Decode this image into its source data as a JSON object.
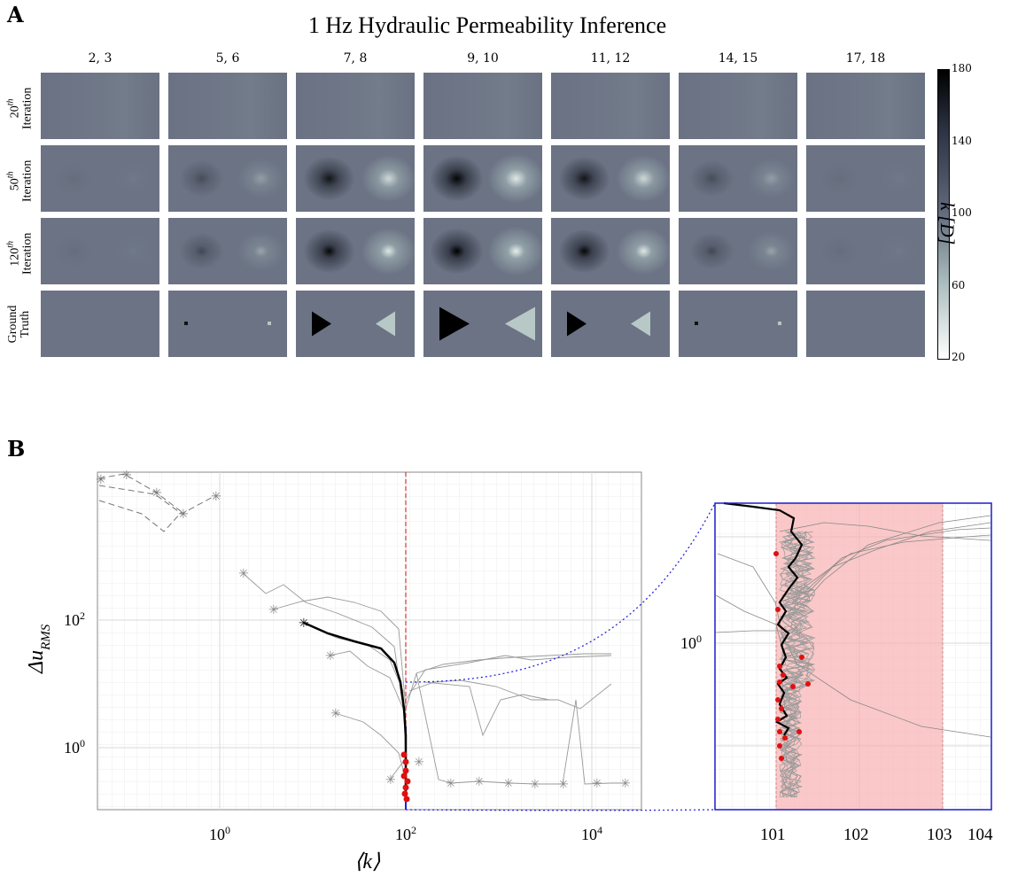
{
  "panel_a": {
    "letter": "A",
    "title": "1 Hz Hydraulic Permeability Inference",
    "columns": [
      "2, 3",
      "5, 6",
      "7, 8",
      "9, 10",
      "11, 12",
      "14, 15",
      "17, 18"
    ],
    "rows": [
      {
        "sup": "th",
        "base": "20",
        "line2": "Iteration"
      },
      {
        "sup": "th",
        "base": "50",
        "line2": "Iteration"
      },
      {
        "sup": "th",
        "base": "120",
        "line2": "Iteration"
      },
      {
        "sup": "",
        "base": "Ground",
        "line2": "Truth"
      }
    ],
    "colorbar": {
      "label": "k [D]",
      "ticks": [
        "180",
        "140",
        "100",
        "60",
        "20"
      ],
      "min": 20,
      "max": 180
    }
  },
  "panel_b": {
    "letter": "B"
  },
  "chart_data": [
    {
      "type": "line",
      "xlabel": "⟨k⟩",
      "ylabel": "Δu_RMS",
      "xscale": "log",
      "yscale": "log",
      "x_ticks": [
        "10^0",
        "10^2",
        "10^4"
      ],
      "y_ticks": [
        "10^0",
        "10^2"
      ],
      "reference_line_x": 100,
      "main_path": {
        "x": [
          7.5,
          12,
          25,
          50,
          75,
          95,
          100,
          100,
          100
        ],
        "y": [
          40,
          30,
          22,
          18,
          10,
          3,
          1,
          0.5,
          0.2
        ]
      },
      "grid": true
    },
    {
      "type": "line",
      "x_ticks": [
        "101",
        "102",
        "103",
        "104"
      ],
      "y_ticks": [
        "10^0"
      ],
      "shaded_region_x": [
        101.3,
        103.6
      ],
      "grid": true
    }
  ]
}
